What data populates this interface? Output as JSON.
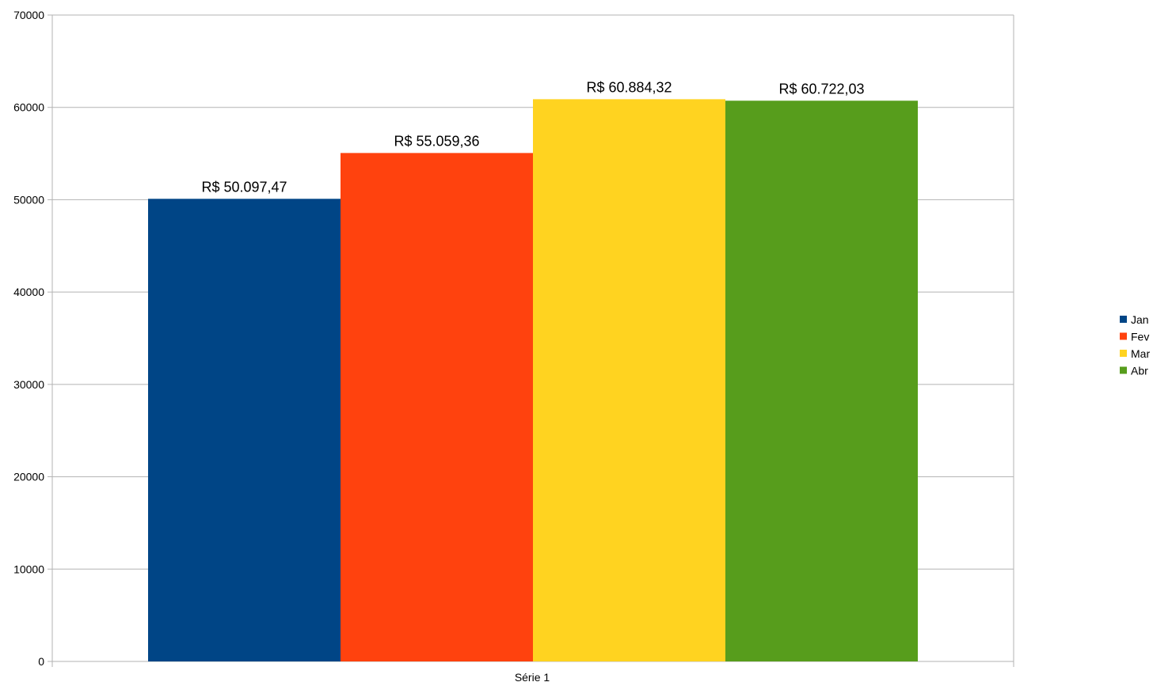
{
  "chart_data": {
    "type": "bar",
    "categories": [
      "Série 1"
    ],
    "series": [
      {
        "name": "Jan",
        "values": [
          50097.47
        ],
        "label": "R$ 50.097,47",
        "color": "#004586"
      },
      {
        "name": "Fev",
        "values": [
          55059.36
        ],
        "label": "R$ 55.059,36",
        "color": "#ff420e"
      },
      {
        "name": "Mar",
        "values": [
          60884.32
        ],
        "label": "R$ 60.884,32",
        "color": "#ffd320"
      },
      {
        "name": "Abr",
        "values": [
          60722.03
        ],
        "label": "R$ 60.722,03",
        "color": "#579d1c"
      }
    ],
    "ylim": [
      0,
      70000
    ],
    "yticks": [
      "0",
      "10000",
      "20000",
      "30000",
      "40000",
      "50000",
      "60000",
      "70000"
    ],
    "title": "",
    "xlabel": "",
    "ylabel": "",
    "grid": true,
    "legend_position": "right"
  }
}
